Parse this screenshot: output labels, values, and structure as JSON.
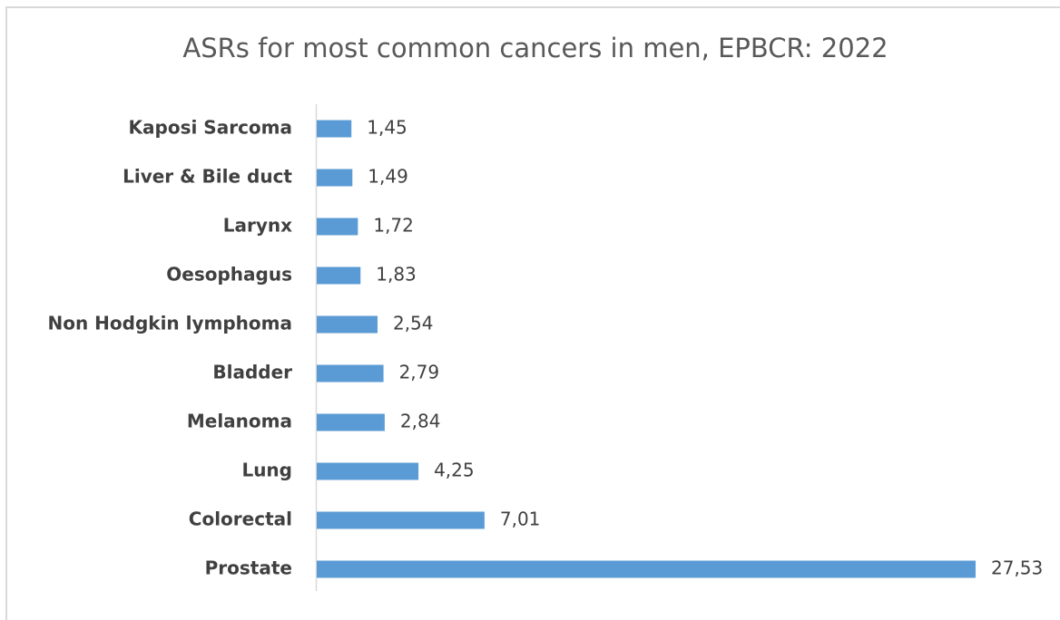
{
  "chart_data": {
    "type": "bar",
    "orientation": "horizontal",
    "title": "ASRs for most common cancers in men, EPBCR: 2022",
    "categories": [
      "Kaposi Sarcoma",
      "Liver & Bile duct",
      "Larynx",
      "Oesophagus",
      "Non Hodgkin lymphoma",
      "Bladder",
      "Melanoma",
      "Lung",
      "Colorectal",
      "Prostate"
    ],
    "values": [
      1.45,
      1.49,
      1.72,
      1.83,
      2.54,
      2.79,
      2.84,
      4.25,
      7.01,
      27.53
    ],
    "value_labels": [
      "1,45",
      "1,49",
      "1,72",
      "1,83",
      "2,54",
      "2,79",
      "2,84",
      "4,25",
      "7,01",
      "27,53"
    ],
    "color": "#5b9bd5"
  }
}
